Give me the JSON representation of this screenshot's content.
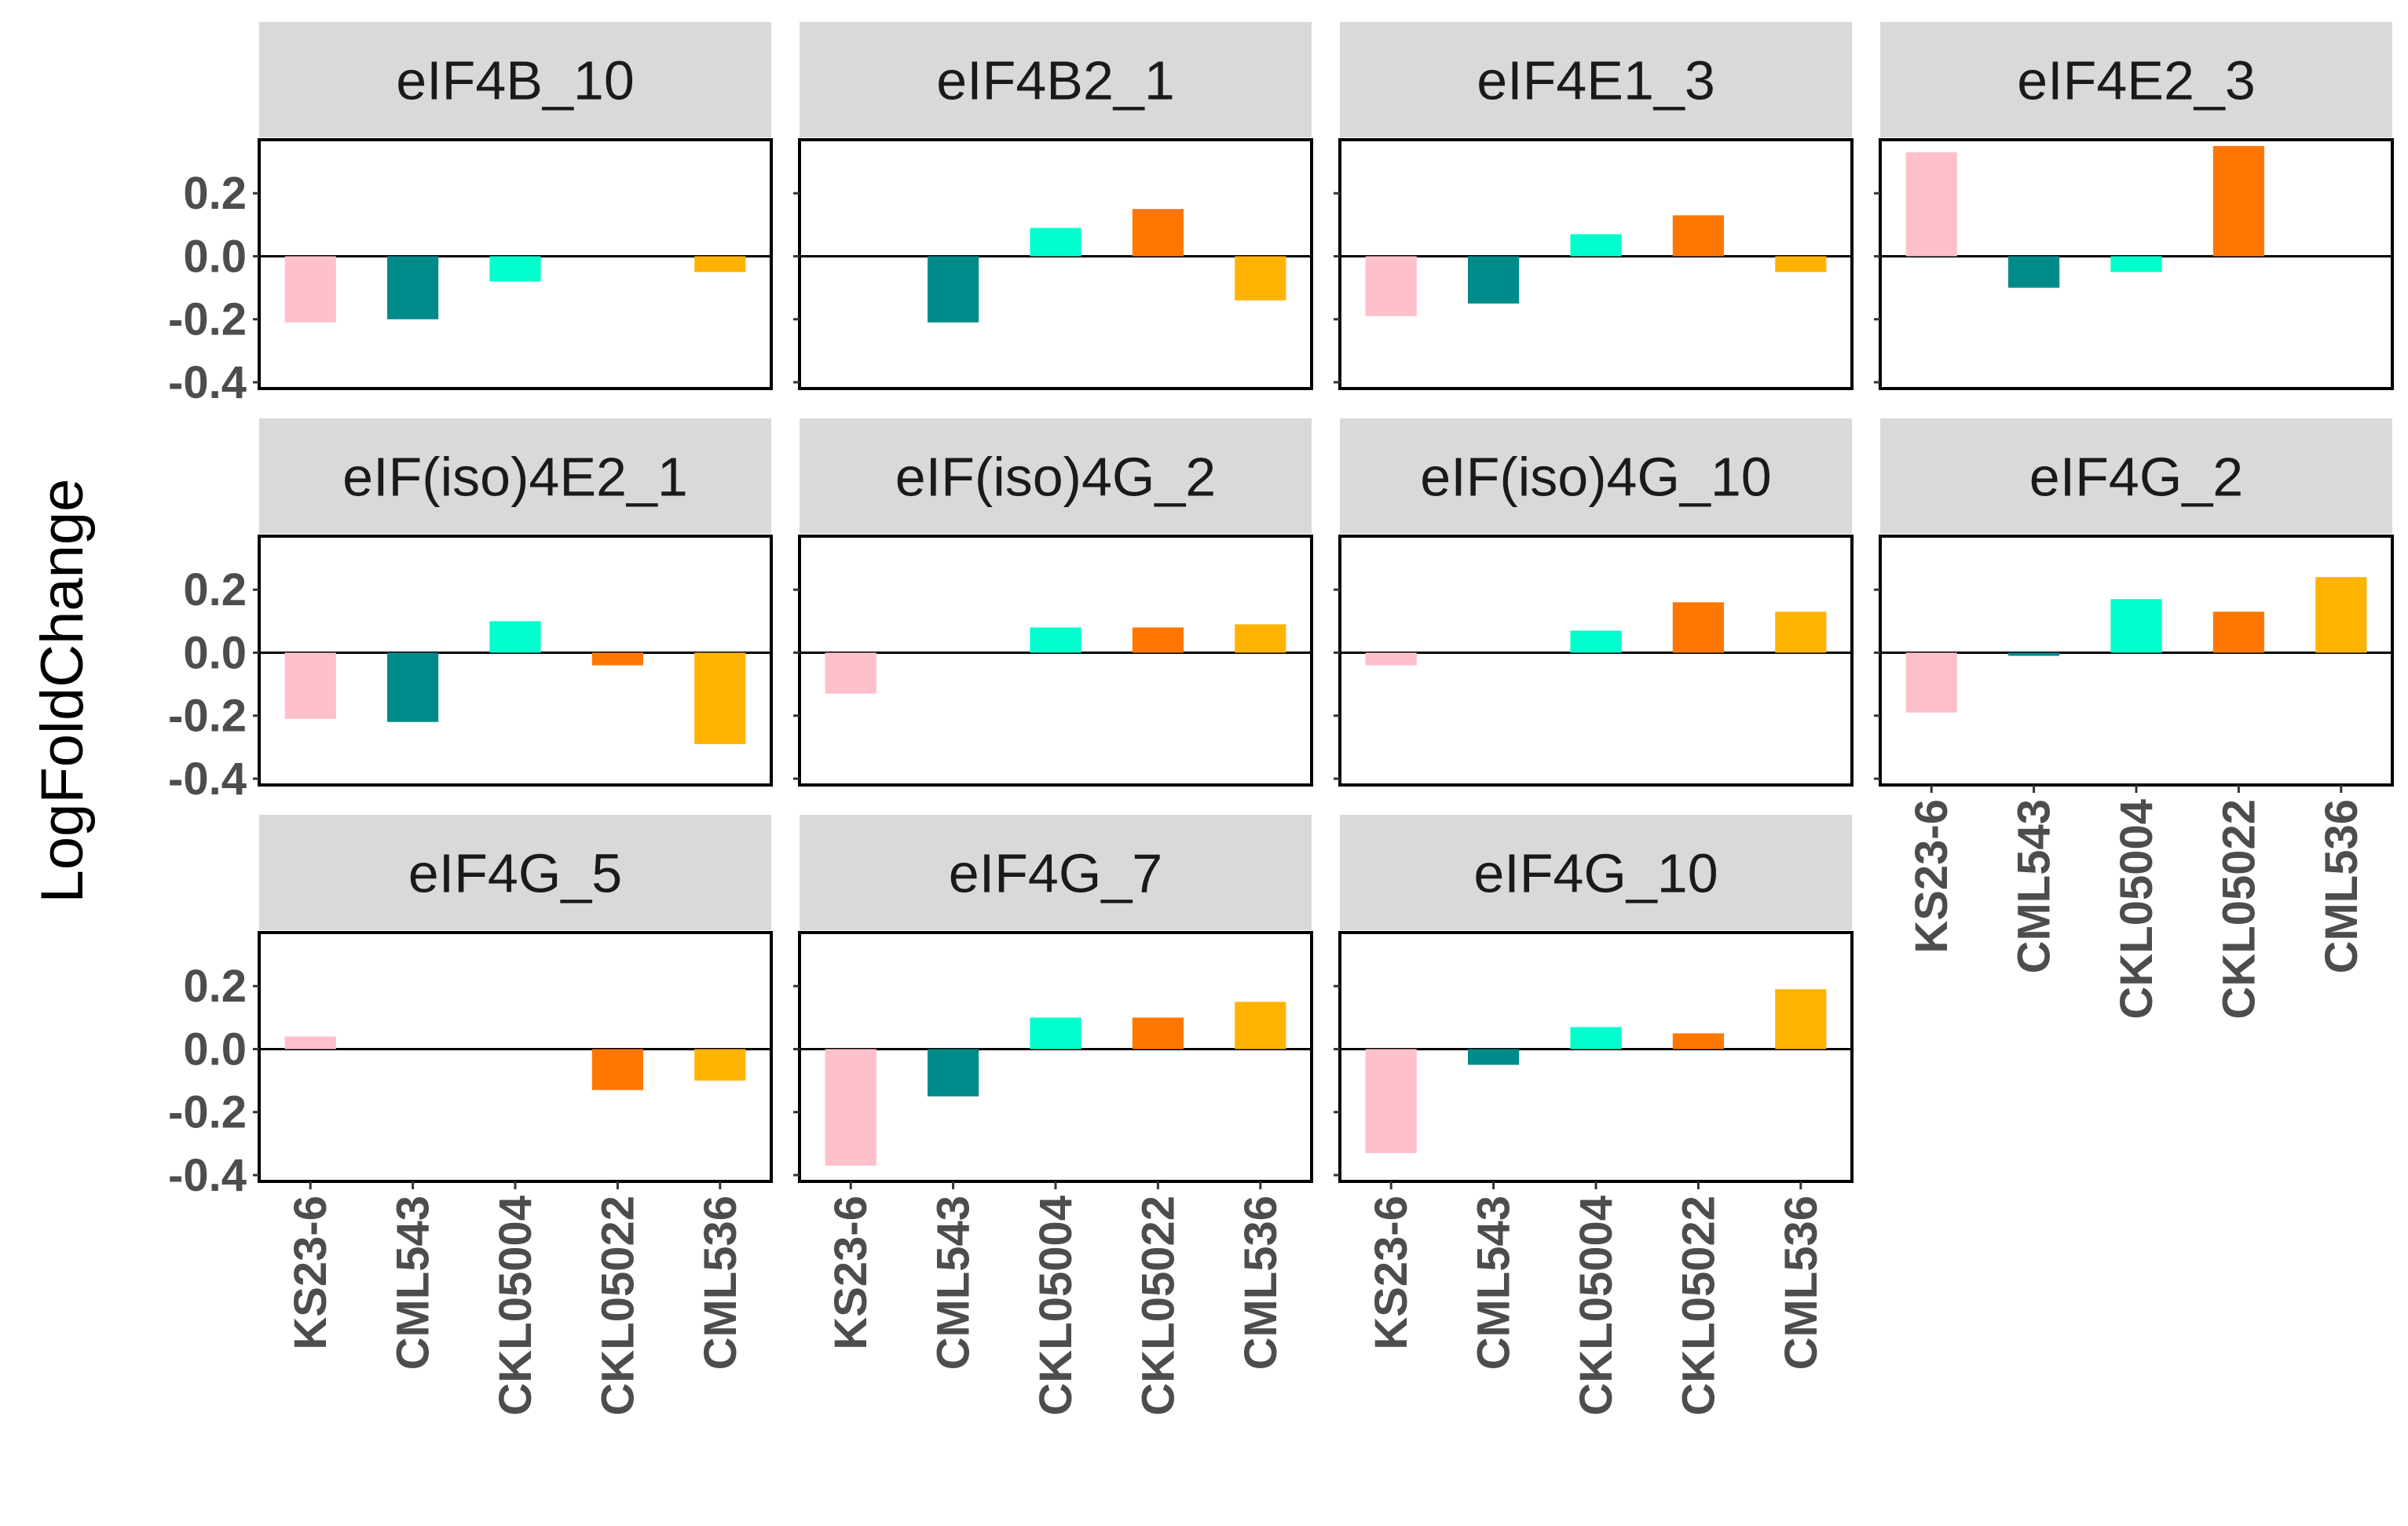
{
  "chart_data": {
    "type": "bar",
    "ylabel": "LogFoldChange",
    "xlabel": "",
    "ylim": [
      -0.42,
      0.37
    ],
    "y_ticks": [
      0.2,
      0.0,
      -0.2,
      -0.4
    ],
    "y_tick_labels": [
      "0.2",
      "0.0",
      "-0.2",
      "-0.4"
    ],
    "categories": [
      "KS23-6",
      "CML543",
      "CKL05004",
      "CKL05022",
      "CML536"
    ],
    "colors": {
      "KS23-6": "#FFC0CB",
      "CML543": "#008B8B",
      "CKL05004": "#00FFCC",
      "CKL05022": "#FF7700",
      "CML536": "#FFB300"
    },
    "panels": [
      {
        "title": "eIF4B_10",
        "values": [
          -0.21,
          -0.2,
          -0.08,
          0,
          -0.05
        ]
      },
      {
        "title": "eIF4B2_1",
        "values": [
          0,
          -0.21,
          0.09,
          0.15,
          -0.14
        ]
      },
      {
        "title": "eIF4E1_3",
        "values": [
          -0.19,
          -0.15,
          0.07,
          0.13,
          -0.05
        ]
      },
      {
        "title": "eIF4E2_3",
        "values": [
          0.33,
          -0.1,
          -0.05,
          0.35,
          0
        ]
      },
      {
        "title": "eIF(iso)4E2_1",
        "values": [
          -0.21,
          -0.22,
          0.1,
          -0.04,
          -0.29
        ]
      },
      {
        "title": "eIF(iso)4G_2",
        "values": [
          -0.13,
          0,
          0.08,
          0.08,
          0.09
        ]
      },
      {
        "title": "eIF(iso)4G_10",
        "values": [
          -0.04,
          0,
          0.07,
          0.16,
          0.13
        ]
      },
      {
        "title": "eIF4G_2",
        "values": [
          -0.19,
          -0.01,
          0.17,
          0.13,
          0.24
        ]
      },
      {
        "title": "eIF4G_5",
        "values": [
          0.04,
          0,
          0,
          -0.13,
          -0.1
        ]
      },
      {
        "title": "eIF4G_7",
        "values": [
          -0.37,
          -0.15,
          0.1,
          0.1,
          0.15
        ]
      },
      {
        "title": "eIF4G_10",
        "values": [
          -0.33,
          -0.05,
          0.07,
          0.05,
          0.19
        ]
      }
    ]
  }
}
